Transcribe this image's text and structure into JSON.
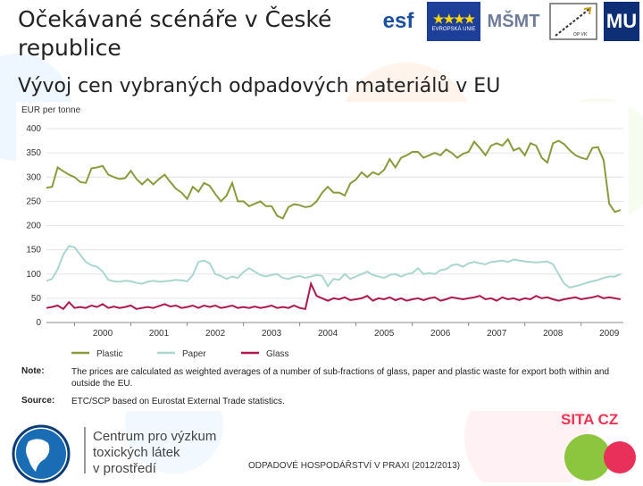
{
  "slide": {
    "title": "Očekávané scénáře v České republice",
    "subtitle": "Vývoj cen vybraných odpadových materiálů v EU",
    "footer_caption": "ODPADOVÉ HOSPODÁŘSTVÍ V PRAXI (2012/2013)",
    "centrum_lines": [
      "Centrum pro výzkum",
      "toxických látek",
      "v prostředí"
    ],
    "sita_text": "SITA CZ",
    "logos": [
      "esf",
      "EVROPSKÁ UNIE",
      "MŠMT",
      "OP VK",
      "MU"
    ]
  },
  "colors": {
    "plastic": "#8a9a3c",
    "paper": "#a9d6cf",
    "glass": "#b0184e"
  },
  "note": {
    "note_label": "Note:",
    "note_text": "The prices are calculated as weighted averages of a number of sub-fractions of glass, paper and plastic waste for export both within and outside the EU.",
    "source_label": "Source:",
    "source_text": "ETC/SCP based on Eurostat External Trade statistics."
  },
  "chart_data": {
    "type": "line",
    "ylabel": "EUR per tonne",
    "ylim": [
      0,
      400
    ],
    "yticks": [
      0,
      50,
      100,
      150,
      200,
      250,
      300,
      350,
      400
    ],
    "xlim": [
      1999.5,
      2009.75
    ],
    "xticks": [
      "2000",
      "2001",
      "2002",
      "2003",
      "2004",
      "2005",
      "2006",
      "2007",
      "2008",
      "2009"
    ],
    "grid": true,
    "legend_position": "bottom",
    "series": [
      {
        "name": "Plastic",
        "x": [
          1999.5,
          1999.6,
          1999.7,
          1999.8,
          1999.9,
          2000.0,
          2000.1,
          2000.2,
          2000.3,
          2000.4,
          2000.5,
          2000.6,
          2000.7,
          2000.8,
          2000.9,
          2001.0,
          2001.1,
          2001.2,
          2001.3,
          2001.4,
          2001.5,
          2001.6,
          2001.7,
          2001.8,
          2001.9,
          2002.0,
          2002.1,
          2002.2,
          2002.3,
          2002.4,
          2002.5,
          2002.6,
          2002.7,
          2002.8,
          2002.9,
          2003.0,
          2003.1,
          2003.2,
          2003.3,
          2003.4,
          2003.5,
          2003.6,
          2003.7,
          2003.8,
          2003.9,
          2004.0,
          2004.1,
          2004.2,
          2004.3,
          2004.4,
          2004.5,
          2004.6,
          2004.7,
          2004.8,
          2004.9,
          2005.0,
          2005.1,
          2005.2,
          2005.3,
          2005.4,
          2005.5,
          2005.6,
          2005.7,
          2005.8,
          2005.9,
          2006.0,
          2006.1,
          2006.2,
          2006.3,
          2006.4,
          2006.5,
          2006.6,
          2006.7,
          2006.8,
          2006.9,
          2007.0,
          2007.1,
          2007.2,
          2007.3,
          2007.4,
          2007.5,
          2007.6,
          2007.7,
          2007.8,
          2007.9,
          2008.0,
          2008.1,
          2008.2,
          2008.3,
          2008.4,
          2008.5,
          2008.6,
          2008.7,
          2008.8,
          2008.9,
          2009.0,
          2009.1,
          2009.2,
          2009.3,
          2009.4,
          2009.5,
          2009.6,
          2009.7
        ],
        "values": [
          278,
          280,
          320,
          312,
          305,
          300,
          290,
          288,
          318,
          320,
          323,
          305,
          300,
          296,
          298,
          313,
          296,
          285,
          296,
          285,
          296,
          305,
          290,
          276,
          268,
          255,
          280,
          270,
          288,
          282,
          265,
          250,
          262,
          288,
          250,
          250,
          240,
          245,
          250,
          240,
          240,
          220,
          215,
          238,
          244,
          242,
          238,
          240,
          250,
          268,
          280,
          268,
          268,
          262,
          287,
          295,
          310,
          300,
          310,
          305,
          315,
          337,
          320,
          340,
          345,
          352,
          352,
          340,
          345,
          350,
          345,
          357,
          350,
          340,
          348,
          352,
          373,
          360,
          345,
          365,
          370,
          365,
          378,
          355,
          360,
          345,
          370,
          365,
          340,
          330,
          370,
          375,
          368,
          355,
          345,
          340,
          337,
          360,
          362,
          335,
          245,
          228,
          232
        ]
      },
      {
        "name": "Paper",
        "x": [
          1999.5,
          1999.6,
          1999.7,
          1999.8,
          1999.9,
          2000.0,
          2000.1,
          2000.2,
          2000.3,
          2000.4,
          2000.5,
          2000.6,
          2000.7,
          2000.8,
          2000.9,
          2001.0,
          2001.1,
          2001.2,
          2001.3,
          2001.4,
          2001.5,
          2001.6,
          2001.7,
          2001.8,
          2001.9,
          2002.0,
          2002.1,
          2002.2,
          2002.3,
          2002.4,
          2002.5,
          2002.6,
          2002.7,
          2002.8,
          2002.9,
          2003.0,
          2003.1,
          2003.2,
          2003.3,
          2003.4,
          2003.5,
          2003.6,
          2003.7,
          2003.8,
          2003.9,
          2004.0,
          2004.1,
          2004.2,
          2004.3,
          2004.4,
          2004.5,
          2004.6,
          2004.7,
          2004.8,
          2004.9,
          2005.0,
          2005.1,
          2005.2,
          2005.3,
          2005.4,
          2005.5,
          2005.6,
          2005.7,
          2005.8,
          2005.9,
          2006.0,
          2006.1,
          2006.2,
          2006.3,
          2006.4,
          2006.5,
          2006.6,
          2006.7,
          2006.8,
          2006.9,
          2007.0,
          2007.1,
          2007.2,
          2007.3,
          2007.4,
          2007.5,
          2007.6,
          2007.7,
          2007.8,
          2007.9,
          2008.0,
          2008.1,
          2008.2,
          2008.3,
          2008.4,
          2008.5,
          2008.6,
          2008.7,
          2008.8,
          2008.9,
          2009.0,
          2009.1,
          2009.2,
          2009.3,
          2009.4,
          2009.5,
          2009.6,
          2009.7
        ],
        "values": [
          86,
          90,
          110,
          140,
          158,
          155,
          140,
          125,
          118,
          115,
          105,
          88,
          85,
          84,
          86,
          85,
          82,
          80,
          84,
          86,
          84,
          85,
          86,
          88,
          87,
          85,
          98,
          125,
          128,
          122,
          100,
          96,
          90,
          95,
          92,
          104,
          112,
          105,
          98,
          95,
          98,
          100,
          92,
          90,
          94,
          96,
          92,
          95,
          98,
          96,
          75,
          90,
          88,
          100,
          90,
          95,
          100,
          105,
          98,
          95,
          92,
          98,
          100,
          95,
          100,
          102,
          112,
          100,
          102,
          100,
          108,
          110,
          118,
          120,
          115,
          122,
          125,
          122,
          120,
          125,
          126,
          128,
          125,
          130,
          128,
          126,
          125,
          124,
          125,
          126,
          120,
          100,
          80,
          72,
          75,
          78,
          82,
          85,
          88,
          92,
          95,
          95,
          100
        ]
      },
      {
        "name": "Glass",
        "x": [
          1999.5,
          1999.6,
          1999.7,
          1999.8,
          1999.9,
          2000.0,
          2000.1,
          2000.2,
          2000.3,
          2000.4,
          2000.5,
          2000.6,
          2000.7,
          2000.8,
          2000.9,
          2001.0,
          2001.1,
          2001.2,
          2001.3,
          2001.4,
          2001.5,
          2001.6,
          2001.7,
          2001.8,
          2001.9,
          2002.0,
          2002.1,
          2002.2,
          2002.3,
          2002.4,
          2002.5,
          2002.6,
          2002.7,
          2002.8,
          2002.9,
          2003.0,
          2003.1,
          2003.2,
          2003.3,
          2003.4,
          2003.5,
          2003.6,
          2003.7,
          2003.8,
          2003.9,
          2004.0,
          2004.1,
          2004.2,
          2004.3,
          2004.4,
          2004.5,
          2004.6,
          2004.7,
          2004.8,
          2004.9,
          2005.0,
          2005.1,
          2005.2,
          2005.3,
          2005.4,
          2005.5,
          2005.6,
          2005.7,
          2005.8,
          2005.9,
          2006.0,
          2006.1,
          2006.2,
          2006.3,
          2006.4,
          2006.5,
          2006.6,
          2006.7,
          2006.8,
          2006.9,
          2007.0,
          2007.1,
          2007.2,
          2007.3,
          2007.4,
          2007.5,
          2007.6,
          2007.7,
          2007.8,
          2007.9,
          2008.0,
          2008.1,
          2008.2,
          2008.3,
          2008.4,
          2008.5,
          2008.6,
          2008.7,
          2008.8,
          2008.9,
          2009.0,
          2009.1,
          2009.2,
          2009.3,
          2009.4,
          2009.5,
          2009.6,
          2009.7
        ],
        "values": [
          30,
          32,
          35,
          28,
          42,
          30,
          32,
          30,
          35,
          32,
          38,
          30,
          33,
          30,
          32,
          35,
          28,
          30,
          32,
          30,
          34,
          38,
          33,
          35,
          30,
          32,
          35,
          30,
          35,
          32,
          35,
          30,
          32,
          35,
          30,
          32,
          30,
          33,
          30,
          32,
          35,
          30,
          32,
          30,
          35,
          30,
          28,
          80,
          55,
          50,
          45,
          50,
          48,
          52,
          46,
          48,
          50,
          55,
          45,
          50,
          48,
          52,
          46,
          50,
          45,
          48,
          50,
          46,
          50,
          52,
          45,
          48,
          52,
          50,
          48,
          50,
          52,
          55,
          48,
          50,
          45,
          52,
          48,
          50,
          46,
          50,
          48,
          55,
          50,
          52,
          48,
          45,
          48,
          50,
          52,
          48,
          50,
          52,
          55,
          50,
          52,
          50,
          48
        ]
      }
    ]
  }
}
